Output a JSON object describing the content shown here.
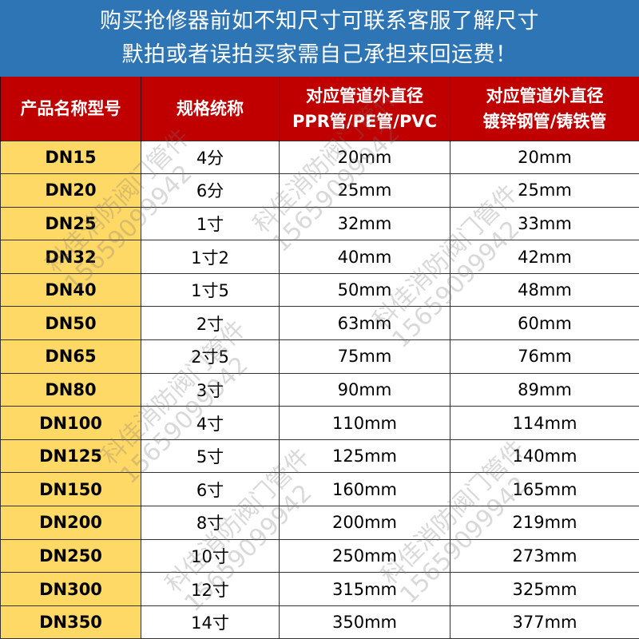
{
  "banner": {
    "line1": "购买抢修器前如不知尺寸可联系客服了解尺寸",
    "line2": "默拍或者误拍买家需自己承担来回运费！"
  },
  "table": {
    "headers": [
      {
        "line1": "产品名称型号",
        "line2": ""
      },
      {
        "line1": "规格统称",
        "line2": ""
      },
      {
        "line1": "对应管道外直径",
        "line2": "PPR管/PE管/PVC"
      },
      {
        "line1": "对应管道外直径",
        "line2": "镀锌钢管/铸铁管"
      }
    ],
    "rows": [
      [
        "DN15",
        "4分",
        "20mm",
        "20mm"
      ],
      [
        "DN20",
        "6分",
        "25mm",
        "25mm"
      ],
      [
        "DN25",
        "1寸",
        "32mm",
        "33mm"
      ],
      [
        "DN32",
        "1寸2",
        "40mm",
        "42mm"
      ],
      [
        "DN40",
        "1寸5",
        "50mm",
        "48mm"
      ],
      [
        "DN50",
        "2寸",
        "63mm",
        "60mm"
      ],
      [
        "DN65",
        "2寸5",
        "75mm",
        "76mm"
      ],
      [
        "DN80",
        "3寸",
        "90mm",
        "89mm"
      ],
      [
        "DN100",
        "4寸",
        "110mm",
        "114mm"
      ],
      [
        "DN125",
        "5寸",
        "125mm",
        "140mm"
      ],
      [
        "DN150",
        "6寸",
        "160mm",
        "165mm"
      ],
      [
        "DN200",
        "8寸",
        "200mm",
        "219mm"
      ],
      [
        "DN250",
        "10寸",
        "250mm",
        "273mm"
      ],
      [
        "DN300",
        "12寸",
        "315mm",
        "325mm"
      ],
      [
        "DN350",
        "14寸",
        "350mm",
        "377mm"
      ]
    ]
  },
  "watermark": {
    "name": "科佳消防阀门管件",
    "phone": "15659099942"
  },
  "colors": {
    "banner_bg": "#2E75B6",
    "header_bg": "#C00000",
    "model_col_bg": "#FFD966"
  }
}
